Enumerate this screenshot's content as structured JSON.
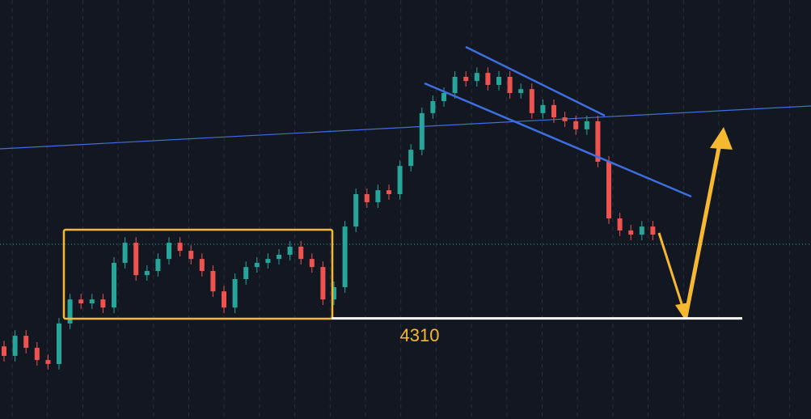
{
  "chart_data": {
    "type": "candlestick",
    "open": [
      4300.0,
      4296.6,
      4303.8,
      4299.5,
      4295.1,
      4293.7,
      4308.2,
      4316.8,
      4315.4,
      4316.8,
      4313.9,
      4329.9,
      4337.1,
      4325.5,
      4327.0,
      4331.3,
      4337.1,
      4334.2,
      4331.3,
      4327.0,
      4319.7,
      4313.9,
      4324.1,
      4328.4,
      4329.9,
      4331.3,
      4332.8,
      4335.7,
      4331.3,
      4328.4,
      4316.8,
      4321.2,
      4342.9,
      4354.5,
      4351.6,
      4355.9,
      4354.5,
      4364.6,
      4370.4,
      4383.5,
      4387.8,
      4390.7,
      4396.5,
      4395.0,
      4397.9,
      4393.6,
      4396.5,
      4390.7,
      4392.1,
      4383.5,
      4386.4,
      4382.0,
      4380.6,
      4377.7,
      4380.6,
      4366.1,
      4345.8,
      4341.5,
      4340.0,
      4342.9
    ],
    "high": [
      4302.0,
      4305.8,
      4305.8,
      4301.5,
      4297.1,
      4310.2,
      4318.8,
      4318.8,
      4318.8,
      4318.8,
      4331.9,
      4339.1,
      4339.1,
      4329.0,
      4333.3,
      4339.1,
      4339.1,
      4336.2,
      4333.3,
      4329.0,
      4321.7,
      4326.1,
      4330.4,
      4331.9,
      4333.3,
      4334.8,
      4337.7,
      4337.7,
      4333.3,
      4330.4,
      4323.2,
      4344.9,
      4356.5,
      4356.5,
      4357.9,
      4357.9,
      4366.6,
      4372.4,
      4385.5,
      4389.8,
      4392.7,
      4398.5,
      4398.5,
      4399.9,
      4399.9,
      4398.5,
      4398.5,
      4394.1,
      4394.1,
      4388.4,
      4388.4,
      4384.0,
      4382.6,
      4382.6,
      4382.6,
      4368.1,
      4347.8,
      4343.5,
      4344.9,
      4344.9
    ],
    "low": [
      4294.6,
      4294.6,
      4297.5,
      4293.1,
      4291.7,
      4291.7,
      4306.2,
      4313.4,
      4313.4,
      4311.9,
      4311.9,
      4327.9,
      4323.5,
      4323.5,
      4325.0,
      4329.3,
      4332.2,
      4329.3,
      4325.0,
      4317.7,
      4311.9,
      4311.9,
      4322.1,
      4326.4,
      4327.9,
      4329.3,
      4330.8,
      4329.3,
      4326.4,
      4314.8,
      4314.8,
      4319.2,
      4340.9,
      4349.6,
      4349.6,
      4352.5,
      4352.5,
      4362.6,
      4368.4,
      4381.5,
      4385.8,
      4388.7,
      4393.0,
      4393.0,
      4391.6,
      4391.6,
      4388.7,
      4388.7,
      4381.5,
      4381.5,
      4380.0,
      4378.6,
      4375.7,
      4375.7,
      4364.1,
      4343.8,
      4339.5,
      4338.0,
      4338.0,
      4338.0
    ],
    "close": [
      4296.6,
      4303.8,
      4299.5,
      4295.1,
      4293.7,
      4308.2,
      4316.8,
      4315.4,
      4316.8,
      4313.9,
      4329.9,
      4337.1,
      4325.5,
      4327.0,
      4331.3,
      4337.1,
      4334.2,
      4331.3,
      4327.0,
      4319.7,
      4313.9,
      4324.1,
      4328.4,
      4329.9,
      4331.3,
      4332.8,
      4335.7,
      4331.3,
      4328.4,
      4316.8,
      4321.2,
      4342.9,
      4354.5,
      4351.6,
      4355.9,
      4354.5,
      4364.6,
      4370.4,
      4383.5,
      4387.8,
      4390.7,
      4396.5,
      4395.0,
      4397.9,
      4393.6,
      4396.5,
      4390.7,
      4392.1,
      4383.5,
      4386.4,
      4382.0,
      4380.6,
      4377.7,
      4380.6,
      4366.1,
      4345.8,
      4341.5,
      4340.0,
      4342.9,
      4340.0
    ],
    "up_color": "#26a69a",
    "down_color": "#ef5350",
    "ylim": [
      4274,
      4424
    ],
    "support_level": 4310
  }
}
